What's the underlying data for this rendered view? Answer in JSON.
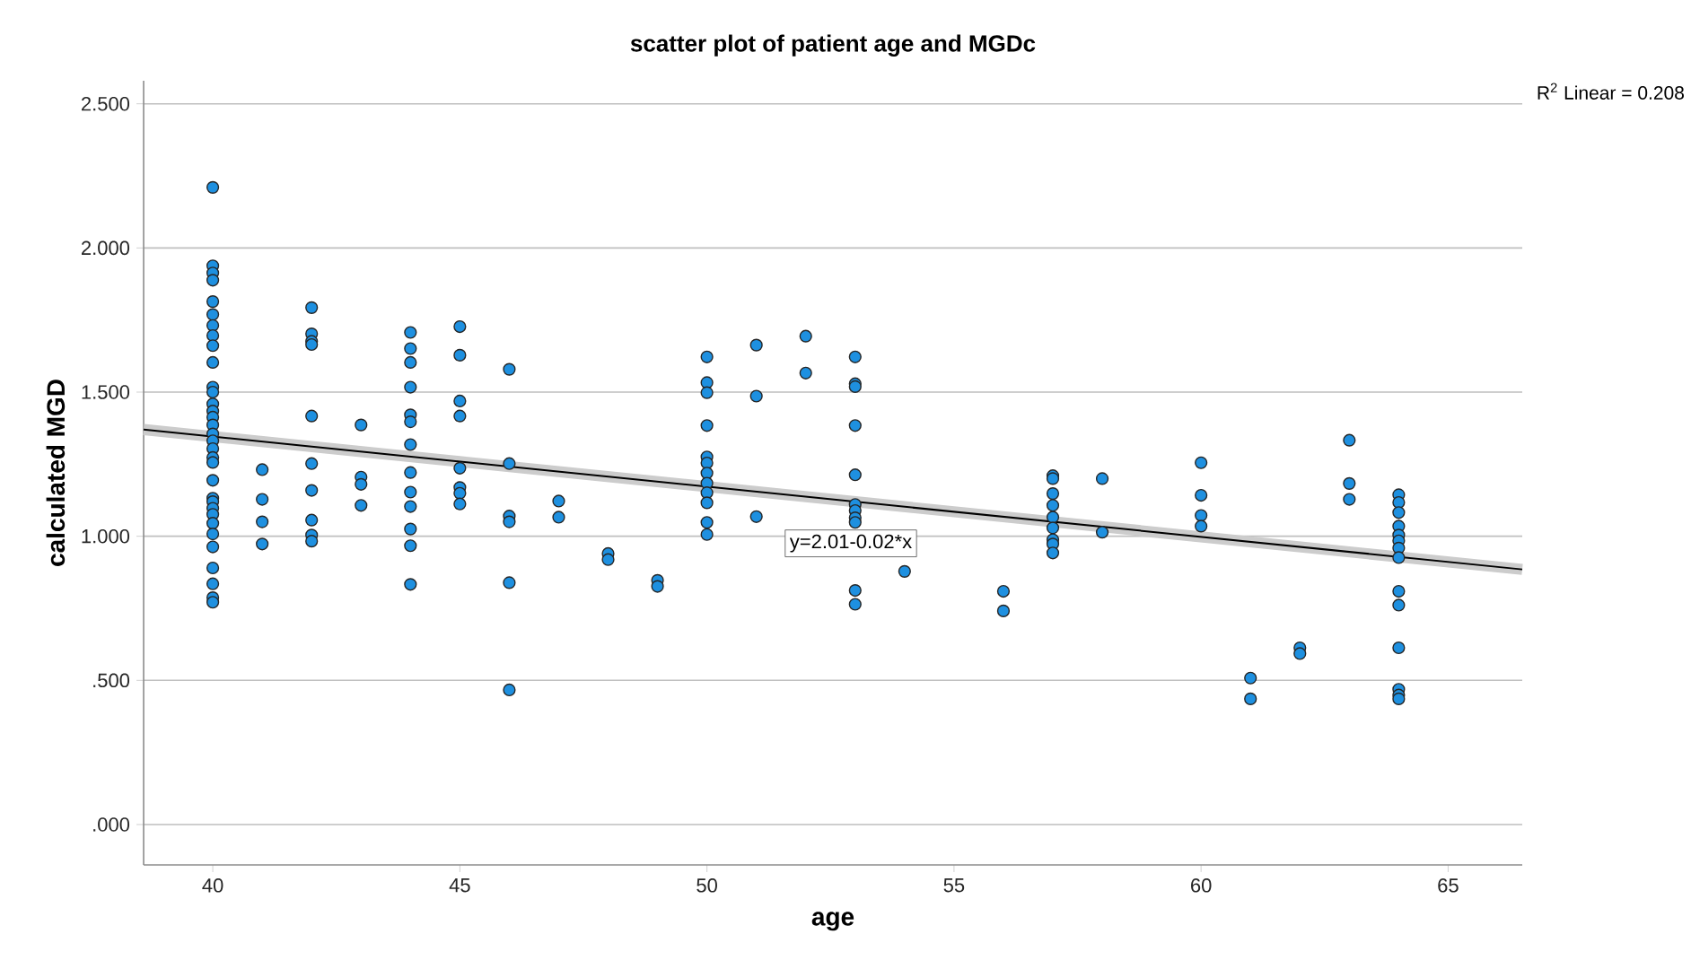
{
  "chart_data": {
    "type": "scatter",
    "title": "scatter plot of patient age and MGDc",
    "xlabel": "age",
    "ylabel": "calculated MGD",
    "annotations": [
      "R$^{2}$ Linear = 0.208",
      "y=2.01-0.02*x"
    ],
    "xlim": [
      38.6,
      66.5
    ],
    "xticks": [
      40,
      45,
      50,
      55,
      60,
      65
    ],
    "ylim": [
      -0.14,
      2.58
    ],
    "yticks": [
      {
        "value": 0,
        "label": ".000"
      },
      {
        "value": 0.5,
        "label": ".500"
      },
      {
        "value": 1,
        "label": "1.000"
      },
      {
        "value": 1.5,
        "label": "1.500"
      },
      {
        "value": 2,
        "label": "2.000"
      },
      {
        "value": 2.5,
        "label": "2.500"
      }
    ],
    "grid": "y",
    "series": [
      {
        "color": "#1e90e0",
        "marker": "circle",
        "x": [
          40,
          40,
          40,
          40,
          40,
          40,
          40,
          40,
          40,
          40,
          40,
          40,
          40,
          40,
          40,
          40,
          40,
          40,
          40,
          40,
          40,
          40,
          40,
          40,
          40,
          40,
          40,
          40,
          40,
          40,
          40,
          40,
          40,
          41,
          41,
          41,
          41,
          42,
          42,
          42,
          42,
          42,
          42,
          42,
          42,
          42,
          42,
          43,
          43,
          43,
          43,
          44,
          44,
          44,
          44,
          44,
          44,
          44,
          44,
          44,
          44,
          44,
          44,
          44,
          45,
          45,
          45,
          45,
          45,
          45,
          45,
          45,
          46,
          46,
          46,
          46,
          46,
          46,
          47,
          47,
          48,
          48,
          49,
          49,
          50,
          50,
          50,
          50,
          50,
          50,
          50,
          50,
          50,
          50,
          50,
          50,
          51,
          51,
          51,
          52,
          52,
          53,
          53,
          53,
          53,
          53,
          53,
          53,
          53,
          53,
          53,
          53,
          54,
          56,
          56,
          57,
          57,
          57,
          57,
          57,
          57,
          57,
          57,
          57,
          58,
          58,
          60,
          60,
          60,
          60,
          61,
          61,
          62,
          62,
          63,
          63,
          63,
          64,
          64,
          64,
          64,
          64,
          64,
          64,
          64,
          64,
          64,
          64,
          64,
          64,
          64
        ],
        "values": [
          2.21,
          1.938,
          1.913,
          1.888,
          1.814,
          1.769,
          1.731,
          1.696,
          1.661,
          1.603,
          1.517,
          1.5,
          1.459,
          1.434,
          1.413,
          1.386,
          1.355,
          1.331,
          1.304,
          1.273,
          1.256,
          1.194,
          1.132,
          1.12,
          1.097,
          1.076,
          1.045,
          1.008,
          0.963,
          0.89,
          0.835,
          0.787,
          0.771,
          1.231,
          1.128,
          1.05,
          0.973,
          1.793,
          1.702,
          1.676,
          1.665,
          1.417,
          1.252,
          1.159,
          1.056,
          1.004,
          0.983,
          1.386,
          1.205,
          1.18,
          1.107,
          1.707,
          1.651,
          1.603,
          1.517,
          1.421,
          1.397,
          1.318,
          1.221,
          1.153,
          1.103,
          1.025,
          0.967,
          0.833,
          1.727,
          1.628,
          1.469,
          1.417,
          1.236,
          1.169,
          1.149,
          1.112,
          1.579,
          1.252,
          1.07,
          1.05,
          0.839,
          0.467,
          1.122,
          1.066,
          0.94,
          0.919,
          0.847,
          0.826,
          1.622,
          1.533,
          1.498,
          1.384,
          1.275,
          1.254,
          1.219,
          1.184,
          1.151,
          1.116,
          1.048,
          1.006,
          1.663,
          1.486,
          1.068,
          1.694,
          1.566,
          1.622,
          1.529,
          1.519,
          1.384,
          1.213,
          1.11,
          1.089,
          1.064,
          1.048,
          0.812,
          0.764,
          0.878,
          0.809,
          0.741,
          1.21,
          1.2,
          1.148,
          1.107,
          1.066,
          1.029,
          0.988,
          0.973,
          0.942,
          1.2,
          1.014,
          1.255,
          1.142,
          1.072,
          1.035,
          0.508,
          0.436,
          0.613,
          0.593,
          1.333,
          1.183,
          1.128,
          1.144,
          1.117,
          1.082,
          1.035,
          1.004,
          0.984,
          0.959,
          0.926,
          0.809,
          0.761,
          0.613,
          0.469,
          0.449,
          0.436
        ]
      },
      {
        "type": "line",
        "marker": "none",
        "color": "#000000",
        "x": [
          38.6,
          66.5
        ],
        "values": [
          1.37,
          0.885
        ]
      }
    ]
  }
}
